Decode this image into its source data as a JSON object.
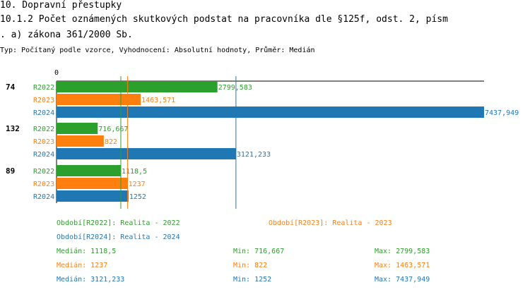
{
  "header": {
    "section": "10. Dopravní přestupky",
    "title_line1": "10.1.2 Počet oznámených skutkových podstat na pracovníka dle §125f, odst. 2, písm",
    "title_line2": ". a) zákona 361/2000 Sb.",
    "subtitle": "Typ: Počítaný podle vzorce, Vyhodnocení: Absolutní hodnoty, Průměr: Medián"
  },
  "colors": {
    "R2022": "#2ca02c",
    "R2023": "#ff7f0e",
    "R2024": "#1f77b4"
  },
  "chart_data": {
    "type": "bar",
    "orientation": "horizontal",
    "axis_zero_label": "0",
    "xlim": [
      0,
      7437.949
    ],
    "categories": [
      "74",
      "132",
      "89"
    ],
    "series": [
      {
        "name": "R2022",
        "values": [
          2799.583,
          716.667,
          1118.5
        ],
        "labels": [
          "2799,583",
          "716,667",
          "1118,5"
        ]
      },
      {
        "name": "R2023",
        "values": [
          1463.571,
          822,
          1237
        ],
        "labels": [
          "1463,571",
          "822",
          "1237"
        ]
      },
      {
        "name": "R2024",
        "values": [
          7437.949,
          3121.233,
          1252
        ],
        "labels": [
          "7437,949",
          "3121,233",
          "1252"
        ]
      }
    ],
    "medians": {
      "R2022": 1118.5,
      "R2023": 1237,
      "R2024": 3121.233
    }
  },
  "legend": {
    "periods": [
      {
        "key": "R2022",
        "text": "Období[R2022]: Realita - 2022"
      },
      {
        "key": "R2023",
        "text": "Období[R2023]: Realita - 2023"
      },
      {
        "key": "R2024",
        "text": "Období[R2024]: Realita - 2024"
      }
    ],
    "stats": [
      {
        "key": "R2022",
        "median": "Medián: 1118,5",
        "min": "Min: 716,667",
        "max": "Max: 2799,583"
      },
      {
        "key": "R2023",
        "median": "Medián: 1237",
        "min": "Min: 822",
        "max": "Max: 1463,571"
      },
      {
        "key": "R2024",
        "median": "Medián: 3121,233",
        "min": "Min: 1252",
        "max": "Max: 7437,949"
      }
    ]
  }
}
